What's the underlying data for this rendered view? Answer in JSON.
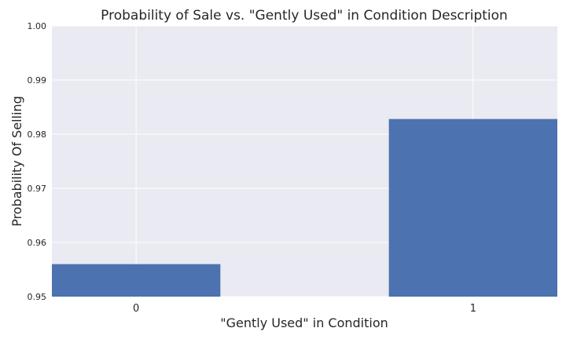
{
  "chart_data": {
    "type": "bar",
    "title": "Probability of Sale vs. \"Gently Used\" in Condition Description",
    "xlabel": "\"Gently Used\" in Condition",
    "ylabel": "Probability Of Selling",
    "categories": [
      "0",
      "1"
    ],
    "values": [
      0.956,
      0.9828
    ],
    "ylim": [
      0.95,
      1.0
    ],
    "yticks": [
      "0.95",
      "0.96",
      "0.97",
      "0.98",
      "0.99",
      "1.00"
    ],
    "grid": true,
    "legend": "none",
    "colors": {
      "bar": "#4c72b0",
      "plot_background": "#eaeaf2",
      "grid": "#ffffff"
    }
  }
}
